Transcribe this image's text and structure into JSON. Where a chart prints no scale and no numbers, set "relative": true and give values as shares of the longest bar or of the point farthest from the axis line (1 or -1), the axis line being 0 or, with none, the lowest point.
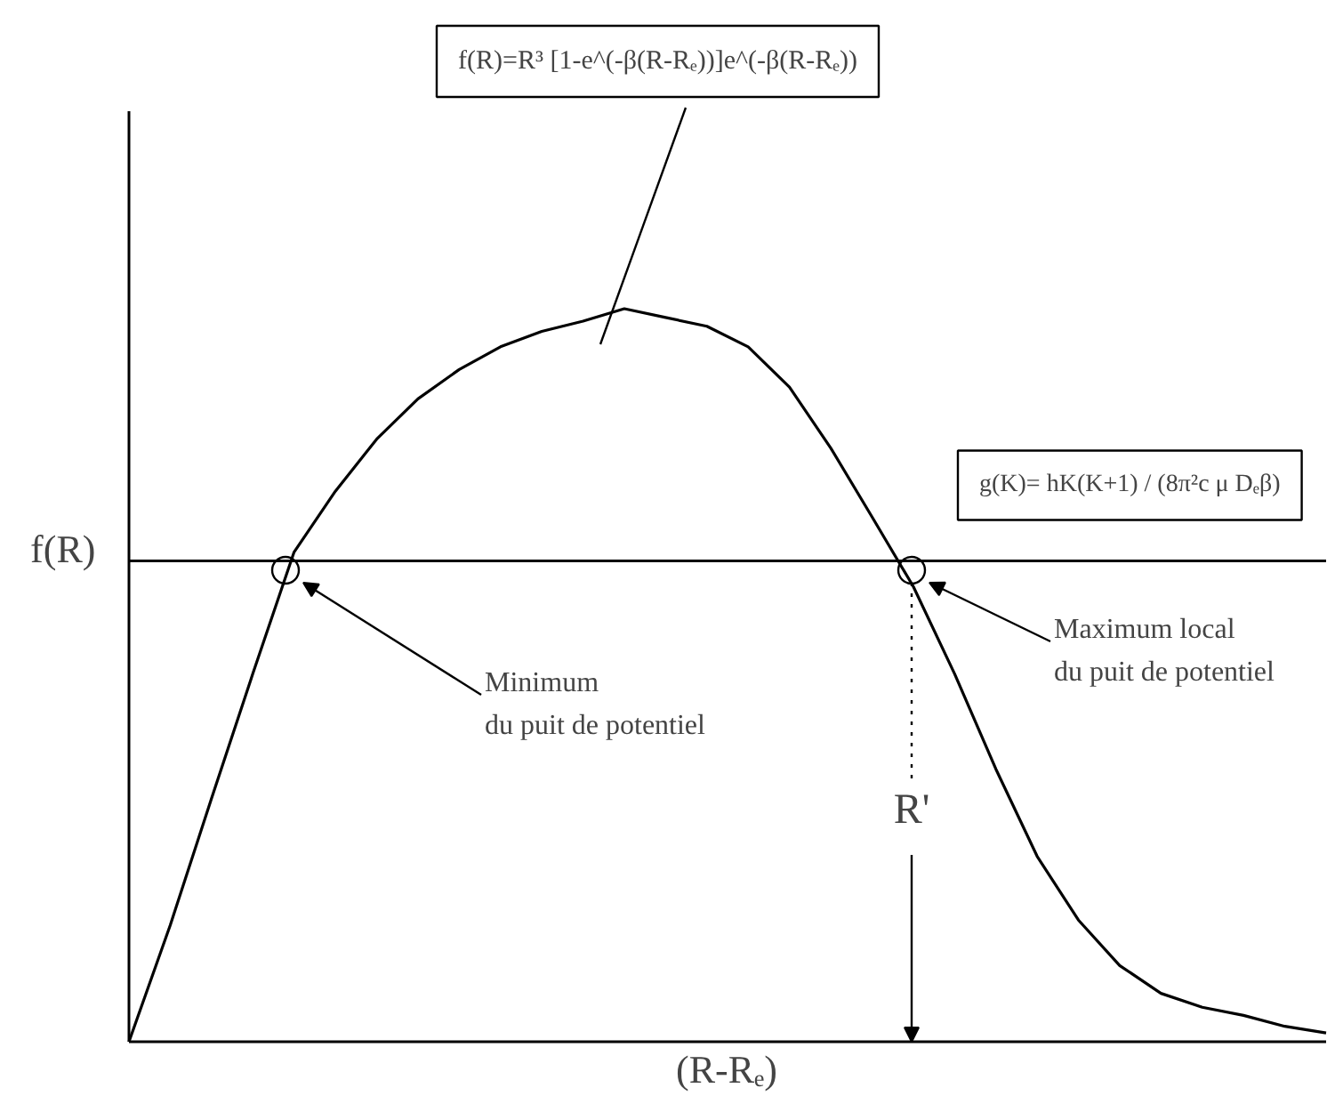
{
  "chart_data": {
    "type": "line",
    "relative": true,
    "xlabel": "(R-Rₑ)",
    "ylabel": "f(R)",
    "categories": [
      null,
      null,
      null,
      null,
      null,
      null,
      null,
      null,
      null,
      null,
      null,
      null,
      null,
      null,
      null,
      null,
      null,
      null,
      null,
      null,
      null,
      null,
      null,
      null,
      null,
      null,
      null,
      null,
      null,
      null
    ],
    "series": [
      {
        "name": "f(R)=R³ [1-e^(-β(R-Rₑ))]e^(-β(R-Rₑ))",
        "color": "#000000",
        "values": [
          0,
          0.159,
          0.332,
          0.502,
          0.668,
          0.751,
          0.822,
          0.877,
          0.917,
          0.948,
          0.969,
          0.983,
          1.0,
          0.988,
          0.976,
          0.948,
          0.893,
          0.81,
          0.716,
          0.621,
          0.502,
          0.372,
          0.253,
          0.166,
          0.104,
          0.066,
          0.047,
          0.036,
          0.021,
          0.012
        ]
      }
    ],
    "ref_lines": [
      {
        "axis": "y",
        "value": 0.656,
        "label": "g(K)= hK(K+1) / (8π²c μ Dₑβ)",
        "color": "#000000"
      }
    ],
    "annotations": [
      "Minimum\ndu puit de potentiel",
      "Maximum local\ndu puit de potentiel",
      "R'"
    ],
    "marker": "none",
    "line_style": "solid",
    "legend": false
  }
}
